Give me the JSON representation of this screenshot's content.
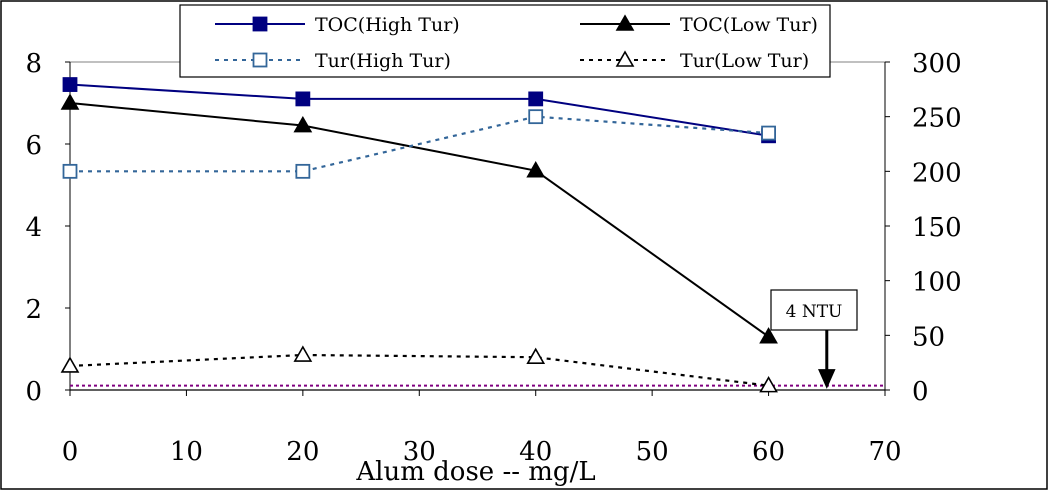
{
  "chart_data": {
    "type": "line",
    "xlabel": "Alum dose -- mg/L",
    "xlim": [
      0,
      70
    ],
    "x_ticks": [
      "0",
      "10",
      "20",
      "30",
      "40",
      "50",
      "60",
      "70"
    ],
    "ylim_left": [
      0,
      8
    ],
    "y_left_ticks": [
      "0",
      "2",
      "4",
      "6",
      "8"
    ],
    "ylim_right": [
      0,
      300
    ],
    "y_right_ticks": [
      "0",
      "50",
      "100",
      "150",
      "200",
      "250",
      "300"
    ],
    "legend_position": "top",
    "series": [
      {
        "name": "TOC(High Tur)",
        "axis": "left",
        "style": "solid",
        "marker": "filled-square",
        "color": "#000080",
        "x": [
          0,
          20,
          40,
          60
        ],
        "y": [
          7.45,
          7.1,
          7.1,
          6.2
        ]
      },
      {
        "name": "TOC(Low Tur)",
        "axis": "left",
        "style": "solid",
        "marker": "filled-triangle",
        "color": "#000000",
        "x": [
          0,
          20,
          40,
          60
        ],
        "y": [
          7.0,
          6.45,
          5.35,
          1.3
        ]
      },
      {
        "name": "Tur(High Tur)",
        "axis": "right",
        "style": "dotted",
        "marker": "open-square",
        "color": "#336699",
        "x": [
          0,
          20,
          40,
          60
        ],
        "y": [
          200,
          200,
          250,
          235
        ]
      },
      {
        "name": "Tur(Low Tur)",
        "axis": "right",
        "style": "dotted",
        "marker": "open-triangle",
        "color": "#000000",
        "x": [
          0,
          20,
          40,
          60
        ],
        "y": [
          22,
          32,
          30,
          4
        ]
      }
    ],
    "reference_line": {
      "axis": "right",
      "value": 4,
      "color": "#800080"
    },
    "annotation": {
      "text": "4 NTU",
      "arrow_x": 65,
      "arrow_to_y_right": 4
    }
  }
}
